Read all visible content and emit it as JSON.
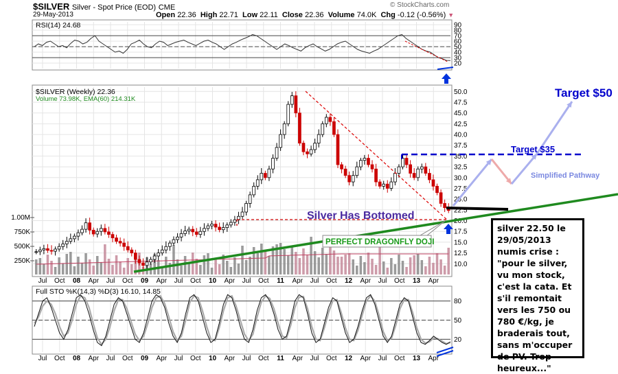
{
  "header": {
    "symbol": "$SILVER",
    "description": "Silver - Spot Price (EOD)",
    "exchange": "CME",
    "watermark": "© StockCharts.com",
    "date": "29-May-2013",
    "ohlc": {
      "open_label": "Open",
      "open": "22.36",
      "high_label": "High",
      "high": "22.71",
      "low_label": "Low",
      "low": "22.11",
      "close_label": "Close",
      "close": "22.36",
      "volume_label": "Volume",
      "volume": "74.0K",
      "chg_label": "Chg",
      "chg": "-0.12 (-0.56%)"
    }
  },
  "chart_data": [
    {
      "type": "line",
      "panel": "rsi",
      "title": "RSI(14) 24.68",
      "y_ticks": [
        "90",
        "80",
        "70",
        "60",
        "50",
        "40",
        "30",
        "20"
      ],
      "ylim": [
        10,
        95
      ],
      "reference_lines": [
        70,
        50,
        30
      ],
      "points": [
        50,
        55,
        52,
        58,
        60,
        55,
        50,
        52,
        48,
        56,
        62,
        60,
        55,
        58,
        65,
        70,
        60,
        55,
        50,
        45,
        40,
        42,
        38,
        45,
        55,
        58,
        62,
        55,
        50,
        48,
        55,
        60,
        58,
        52,
        55,
        58,
        60,
        62,
        58,
        55,
        52,
        56,
        60,
        62,
        58,
        55,
        50,
        45,
        50,
        55,
        58,
        62,
        65,
        68,
        72,
        70,
        65,
        60,
        55,
        50,
        45,
        50,
        55,
        52,
        48,
        45,
        42,
        48,
        52,
        55,
        50,
        46,
        42,
        45,
        50,
        55,
        58,
        60,
        55,
        50,
        45,
        42,
        40,
        38,
        42,
        45,
        50,
        55,
        60,
        65,
        70,
        72,
        65,
        60,
        55,
        50,
        45,
        42,
        40,
        35,
        30,
        28,
        25,
        24.68
      ]
    },
    {
      "type": "candlestick",
      "panel": "price",
      "title": "$SILVER (Weekly) 22.36",
      "volume_legend": "Volume 73.98K, EMA(60) 214.31K",
      "y_ticks": [
        "50.0",
        "47.5",
        "45.0",
        "42.5",
        "40.0",
        "37.5",
        "35.0",
        "32.5",
        "30.0",
        "27.5",
        "25.0",
        "22.5",
        "20.0",
        "17.5",
        "15.0",
        "12.5",
        "10.0"
      ],
      "ylim": [
        7.5,
        51
      ],
      "volume_ticks": [
        "1.00M",
        "750K",
        "500K",
        "250K"
      ],
      "x_ticks": [
        "Jul",
        "Oct",
        "08",
        "Apr",
        "Jul",
        "Oct",
        "09",
        "Apr",
        "Jul",
        "Oct",
        "10",
        "Apr",
        "Jul",
        "Oct",
        "11",
        "Apr",
        "Jul",
        "Oct",
        "12",
        "Apr",
        "Jul",
        "Oct",
        "13",
        "Apr"
      ],
      "closes": [
        12.8,
        13.2,
        13.5,
        13.1,
        12.9,
        13.4,
        14.0,
        14.6,
        15.2,
        15.8,
        16.4,
        17.2,
        18.0,
        19.5,
        17.8,
        16.9,
        17.5,
        18.2,
        17.4,
        16.8,
        16.0,
        15.2,
        14.8,
        14.0,
        13.2,
        12.5,
        11.0,
        10.2,
        9.6,
        10.4,
        11.0,
        11.8,
        12.5,
        13.2,
        14.0,
        14.8,
        15.6,
        16.2,
        17.0,
        17.6,
        18.0,
        17.4,
        16.8,
        17.5,
        18.2,
        18.8,
        19.2,
        18.5,
        17.9,
        18.4,
        19.0,
        19.6,
        20.2,
        21.0,
        22.0,
        24.0,
        26.0,
        28.0,
        29.5,
        31.0,
        30.0,
        32.0,
        34.5,
        37.0,
        40.0,
        42.5,
        47.0,
        49.0,
        45.0,
        38.0,
        36.0,
        35.5,
        36.5,
        38.0,
        40.0,
        42.5,
        44.0,
        43.0,
        40.0,
        33.0,
        32.0,
        30.5,
        29.0,
        30.5,
        32.5,
        34.0,
        34.5,
        33.0,
        32.0,
        29.0,
        28.0,
        28.5,
        27.5,
        29.0,
        31.0,
        32.5,
        34.5,
        33.0,
        31.0,
        30.0,
        32.0,
        32.5,
        31.0,
        29.5,
        28.0,
        26.5,
        24.0,
        23.0,
        22.36
      ],
      "annotations": {
        "title_text": "Silver Has Bottomed",
        "doji_label": "PERFECT DRAGONFLY DOJI",
        "target_near": "Target $35",
        "target_far": "Target $50",
        "pathway_label": "Simplified Pathway"
      }
    },
    {
      "type": "line",
      "panel": "stochastic",
      "title": "Full STO %K(14,3) %D(3) 16.10, 14.85",
      "y_ticks": [
        "80",
        "50",
        "20"
      ],
      "ylim": [
        0,
        100
      ],
      "reference_lines": [
        80,
        50,
        20
      ],
      "x_ticks": [
        "Jul",
        "Oct",
        "08",
        "Apr",
        "Jul",
        "Oct",
        "09",
        "Apr",
        "Jul",
        "Oct",
        "10",
        "Apr",
        "Jul",
        "Oct",
        "11",
        "Apr",
        "Jul",
        "Oct",
        "12",
        "Apr",
        "Jul",
        "Oct",
        "13",
        "Apr"
      ],
      "k_values": [
        40,
        60,
        80,
        85,
        70,
        50,
        30,
        20,
        35,
        60,
        85,
        90,
        80,
        60,
        35,
        15,
        10,
        25,
        50,
        75,
        85,
        80,
        60,
        40,
        20,
        15,
        30,
        55,
        80,
        90,
        85,
        70,
        45,
        25,
        15,
        30,
        60,
        85,
        90,
        80,
        55,
        30,
        15,
        20,
        45,
        75,
        90,
        85,
        65,
        40,
        20,
        15,
        35,
        65,
        85,
        90,
        80,
        60,
        35,
        20,
        25,
        50,
        80,
        90,
        85,
        60,
        30,
        15,
        20,
        45,
        70,
        85,
        80,
        55,
        30,
        15,
        20,
        40,
        65,
        85,
        90,
        75,
        50,
        25,
        15,
        25,
        50,
        75,
        85,
        80,
        55,
        30,
        15,
        12,
        18,
        25,
        20,
        15,
        12,
        16.1
      ],
      "d_values": [
        45,
        55,
        72,
        80,
        75,
        60,
        40,
        25,
        30,
        50,
        75,
        88,
        85,
        70,
        45,
        22,
        12,
        20,
        40,
        65,
        82,
        82,
        68,
        48,
        28,
        18,
        25,
        45,
        70,
        85,
        88,
        76,
        55,
        32,
        18,
        25,
        50,
        78,
        88,
        85,
        65,
        40,
        20,
        18,
        38,
        65,
        85,
        88,
        72,
        50,
        28,
        18,
        28,
        55,
        78,
        88,
        84,
        68,
        45,
        25,
        22,
        42,
        70,
        86,
        87,
        68,
        40,
        20,
        18,
        38,
        62,
        80,
        82,
        62,
        38,
        20,
        18,
        34,
        58,
        80,
        88,
        80,
        58,
        32,
        18,
        22,
        42,
        68,
        82,
        82,
        62,
        38,
        20,
        14,
        16,
        22,
        21,
        17,
        13,
        14.85
      ]
    }
  ],
  "note": {
    "text": "silver 22.50 le 29/05/2013 numis crise : \"pour le silver, vu mon stock, c'est la cata. Et s'il remontait vers les 750 ou 780 €/kg, je braderais tout, sans m'occuper de PV. Trop heureux...\""
  },
  "colors": {
    "up": "#000000",
    "down": "#cc0000",
    "volume_up": "#8a8a8a",
    "volume_down": "#c48a9a",
    "trend_green": "#1f8a1f",
    "target_blue": "#0000cc",
    "pathway_up": "#aab0ee",
    "pathway_down": "#eeaaaa"
  }
}
